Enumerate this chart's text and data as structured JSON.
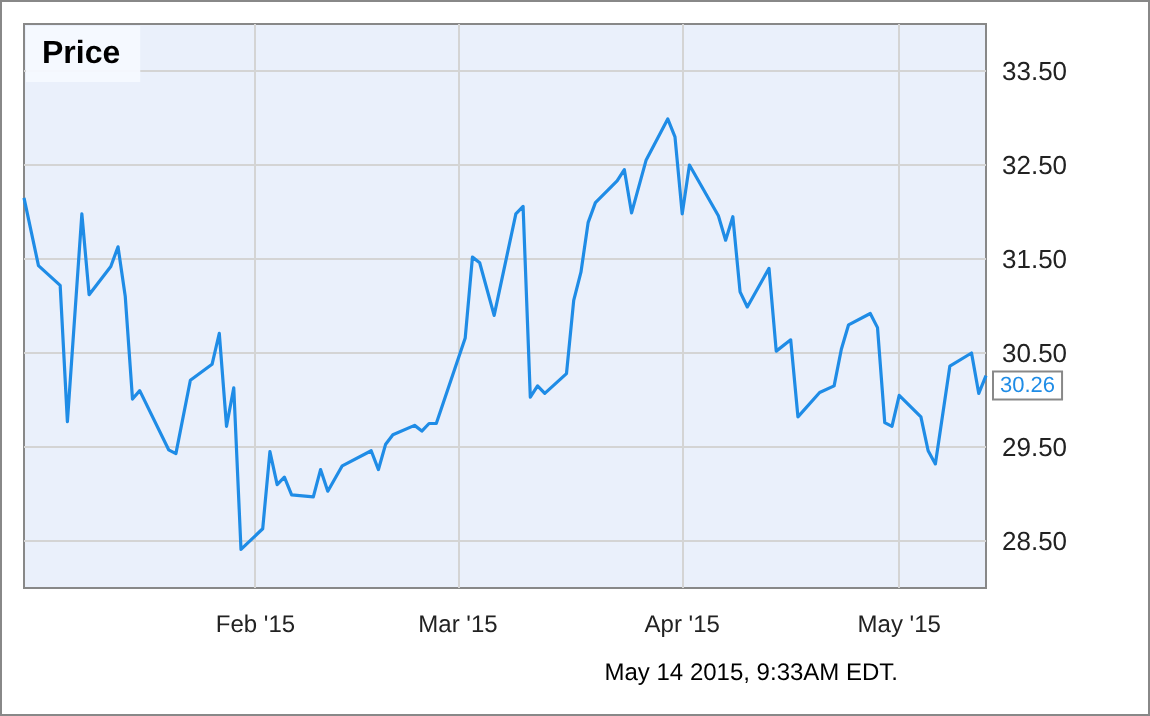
{
  "chart_data": {
    "type": "line",
    "title": "Price",
    "x": [
      "2014-12-31",
      "2015-01-02",
      "2015-01-05",
      "2015-01-06",
      "2015-01-08",
      "2015-01-09",
      "2015-01-12",
      "2015-01-13",
      "2015-01-14",
      "2015-01-15",
      "2015-01-16",
      "2015-01-20",
      "2015-01-21",
      "2015-01-23",
      "2015-01-26",
      "2015-01-27",
      "2015-01-28",
      "2015-01-29",
      "2015-01-30",
      "2015-02-02",
      "2015-02-03",
      "2015-02-04",
      "2015-02-05",
      "2015-02-06",
      "2015-02-09",
      "2015-02-10",
      "2015-02-11",
      "2015-02-13",
      "2015-02-17",
      "2015-02-18",
      "2015-02-19",
      "2015-02-20",
      "2015-02-23",
      "2015-02-24",
      "2015-02-25",
      "2015-02-26",
      "2015-03-02",
      "2015-03-03",
      "2015-03-04",
      "2015-03-06",
      "2015-03-09",
      "2015-03-10",
      "2015-03-11",
      "2015-03-12",
      "2015-03-13",
      "2015-03-16",
      "2015-03-17",
      "2015-03-18",
      "2015-03-19",
      "2015-03-20",
      "2015-03-23",
      "2015-03-24",
      "2015-03-25",
      "2015-03-27",
      "2015-03-30",
      "2015-03-31",
      "2015-04-01",
      "2015-04-02",
      "2015-04-06",
      "2015-04-07",
      "2015-04-08",
      "2015-04-09",
      "2015-04-10",
      "2015-04-13",
      "2015-04-14",
      "2015-04-16",
      "2015-04-17",
      "2015-04-20",
      "2015-04-22",
      "2015-04-23",
      "2015-04-24",
      "2015-04-27",
      "2015-04-28",
      "2015-04-29",
      "2015-04-30",
      "2015-05-01",
      "2015-05-04",
      "2015-05-05",
      "2015-05-06",
      "2015-05-08",
      "2015-05-11",
      "2015-05-12",
      "2015-05-13"
    ],
    "series": [
      {
        "color": "#1f8ce6",
        "values": [
          32.15,
          31.43,
          31.22,
          29.77,
          31.98,
          31.12,
          31.42,
          31.63,
          31.1,
          30.01,
          30.1,
          29.47,
          29.43,
          30.21,
          30.38,
          30.71,
          29.72,
          30.13,
          28.41,
          28.63,
          29.45,
          29.1,
          29.18,
          28.99,
          28.97,
          29.26,
          29.03,
          29.3,
          29.46,
          29.26,
          29.53,
          29.63,
          29.73,
          29.67,
          29.75,
          29.75,
          30.66,
          31.52,
          31.46,
          30.9,
          31.98,
          32.06,
          30.03,
          30.15,
          30.07,
          30.28,
          31.06,
          31.36,
          31.89,
          32.1,
          32.33,
          32.45,
          31.99,
          32.55,
          32.99,
          32.8,
          31.98,
          32.5,
          31.96,
          31.7,
          31.95,
          31.15,
          30.99,
          31.4,
          30.52,
          30.64,
          29.82,
          30.08,
          30.15,
          30.54,
          30.8,
          30.92,
          30.77,
          29.76,
          29.72,
          30.05,
          29.82,
          29.46,
          29.32,
          30.36,
          30.5,
          30.07,
          30.26
        ],
        "value_labels": [
          null,
          null,
          null,
          null,
          null,
          null,
          null,
          null,
          null,
          null,
          null,
          null,
          null,
          null,
          null,
          null,
          null,
          null,
          null,
          null,
          null,
          null,
          null,
          null,
          null,
          null,
          null,
          null,
          null,
          null,
          null,
          null,
          null,
          null,
          null,
          null,
          null,
          null,
          null,
          null,
          null,
          null,
          null,
          null,
          null,
          null,
          null,
          null,
          null,
          null,
          null,
          null,
          null,
          null,
          null,
          null,
          null,
          null,
          null,
          null,
          null,
          null,
          null,
          null,
          null,
          null,
          null,
          null,
          null,
          null,
          null,
          null,
          null,
          null,
          null,
          null,
          null,
          null,
          null,
          null,
          null,
          null,
          "30.26"
        ]
      }
    ],
    "xlim": [
      "2014-12-31",
      "2015-05-13"
    ],
    "xticks": [
      {
        "value": "2015-02-01",
        "label": "Feb '15"
      },
      {
        "value": "2015-03-01",
        "label": "Mar '15"
      },
      {
        "value": "2015-04-01",
        "label": "Apr '15"
      },
      {
        "value": "2015-05-01",
        "label": "May '15"
      }
    ],
    "ylim": [
      28,
      34
    ],
    "yticks": [
      {
        "value": 28.5,
        "label": "28.50"
      },
      {
        "value": 29.5,
        "label": "29.50"
      },
      {
        "value": 30.5,
        "label": "30.50"
      },
      {
        "value": 31.5,
        "label": "31.50"
      },
      {
        "value": 32.5,
        "label": "32.50"
      },
      {
        "value": 33.5,
        "label": "33.50"
      }
    ],
    "grid": true,
    "marker": "none",
    "line_style": "solid",
    "annotations": [
      "May 14 2015, 9:33AM EDT."
    ]
  }
}
